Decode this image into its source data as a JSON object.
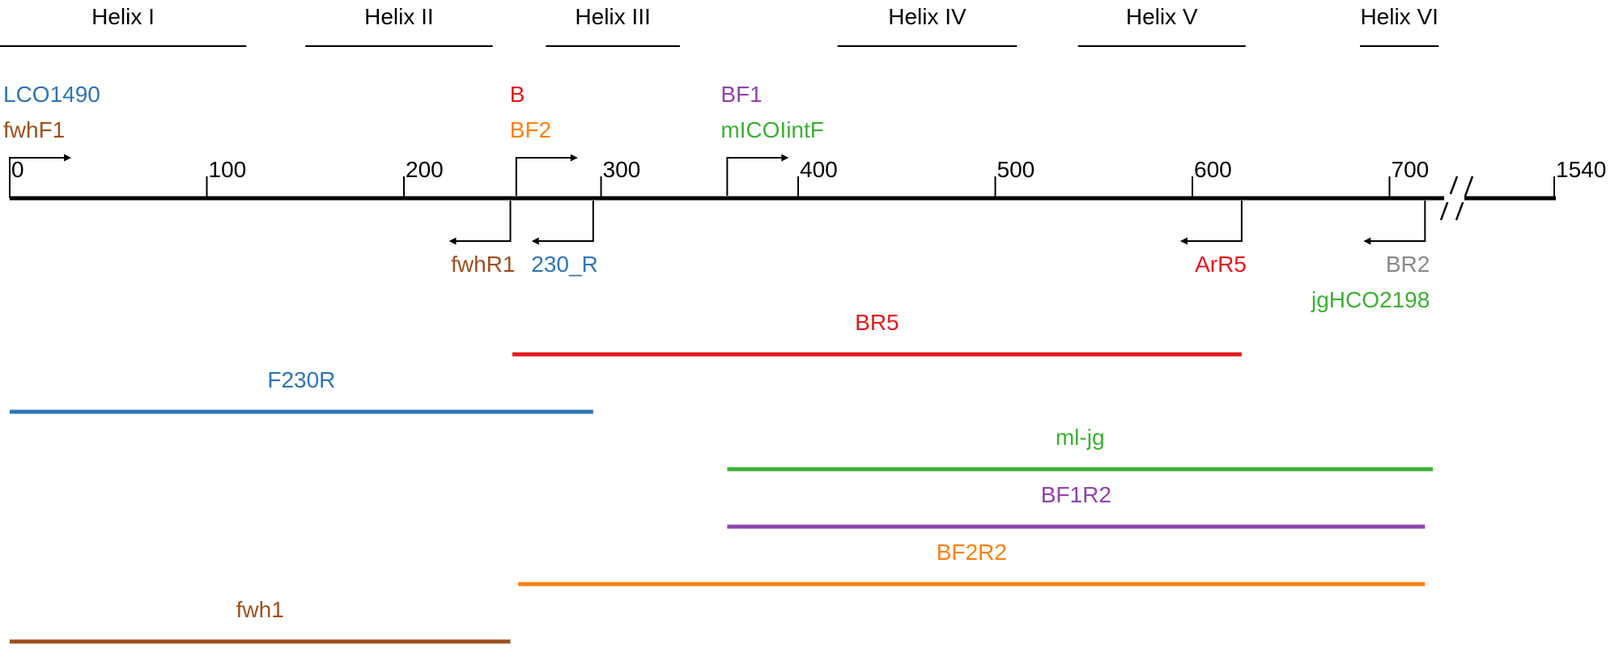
{
  "helices": [
    {
      "label": "Helix I",
      "start": -5,
      "end": 120
    },
    {
      "label": "Helix II",
      "start": 150,
      "end": 245
    },
    {
      "label": "Helix III",
      "start": 272,
      "end": 340
    },
    {
      "label": "Helix IV",
      "start": 420,
      "end": 511
    },
    {
      "label": "Helix V",
      "start": 542,
      "end": 627
    },
    {
      "label": "Helix VI",
      "start": 685,
      "end": 725
    }
  ],
  "axis": {
    "ticks": [
      {
        "label": "0",
        "value": 0
      },
      {
        "label": "100",
        "value": 100
      },
      {
        "label": "200",
        "value": 200
      },
      {
        "label": "300",
        "value": 300
      },
      {
        "label": "400",
        "value": 400
      },
      {
        "label": "500",
        "value": 500
      },
      {
        "label": "600",
        "value": 600
      },
      {
        "label": "700",
        "value": 700
      },
      {
        "label": "1540",
        "value": 1540
      }
    ]
  },
  "forward_primers": [
    {
      "position": 0,
      "labels": [
        {
          "text": "LCO1490",
          "color": "#2e75b6"
        },
        {
          "text": "fwhF1",
          "color": "#9e4f1f"
        }
      ]
    },
    {
      "position": 257,
      "labels": [
        {
          "text": "B",
          "color": "#e41a1c"
        },
        {
          "text": "BF2",
          "color": "#ff7f0e"
        }
      ]
    },
    {
      "position": 364,
      "labels": [
        {
          "text": "BF1",
          "color": "#8e44ad"
        },
        {
          "text": "mICOIintF",
          "color": "#3cb034"
        }
      ]
    }
  ],
  "reverse_primers": [
    {
      "position": 254,
      "labels": [
        {
          "text": "fwhR1",
          "color": "#9e4f1f"
        }
      ]
    },
    {
      "position": 296,
      "labels": [
        {
          "text": "230_R",
          "color": "#2e75b6"
        }
      ]
    },
    {
      "position": 625,
      "labels": [
        {
          "text": "ArR5",
          "color": "#e41a1c"
        }
      ]
    },
    {
      "position": 718,
      "labels": [
        {
          "text": "BR2",
          "color": "#888888"
        },
        {
          "text": "jgHCO2198",
          "color": "#3cb034"
        }
      ]
    }
  ],
  "amplicons": [
    {
      "label": "BR5",
      "start": 255,
      "end": 625,
      "color": "#e41a1c"
    },
    {
      "label": "F230R",
      "start": 0,
      "end": 296,
      "color": "#2e75b6"
    },
    {
      "label": "ml-jg",
      "start": 364,
      "end": 722,
      "color": "#3cb034"
    },
    {
      "label": "BF1R2",
      "start": 364,
      "end": 718,
      "color": "#8e44ad"
    },
    {
      "label": "BF2R2",
      "start": 258,
      "end": 718,
      "color": "#ff7f0e"
    },
    {
      "label": "fwh1",
      "start": 0,
      "end": 254,
      "color": "#9e4f1f"
    }
  ]
}
